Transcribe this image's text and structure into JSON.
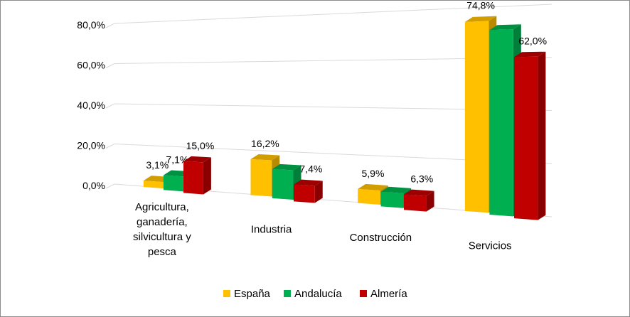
{
  "chart_data": {
    "type": "bar",
    "title": "",
    "xlabel": "",
    "ylabel": "",
    "ylim": [
      0,
      80
    ],
    "yticks": [
      "0,0%",
      "20,0%",
      "40,0%",
      "60,0%",
      "80,0%"
    ],
    "categories": [
      [
        "Agricultura,",
        "ganadería,",
        "silvicultura y",
        "pesca"
      ],
      [
        "Industria"
      ],
      [
        "Construcción"
      ],
      [
        "Servicios"
      ]
    ],
    "series": [
      {
        "name": "España",
        "color": "#ffc000",
        "values": [
          3.1,
          16.2,
          5.9,
          74.8
        ],
        "labels": [
          "3,1%",
          "16,2%",
          "5,9%",
          "74,8%"
        ]
      },
      {
        "name": "Andalucía",
        "color": "#00b050",
        "values": [
          7.1,
          13.0,
          6.1,
          72.0
        ],
        "labels": [
          "7,1%",
          "",
          "",
          ""
        ]
      },
      {
        "name": "Almería",
        "color": "#c00000",
        "values": [
          15.0,
          7.4,
          6.3,
          62.0
        ],
        "labels": [
          "15,0%",
          "7,4%",
          "6,3%",
          "62,0%"
        ]
      }
    ],
    "legend": {
      "position": "bottom",
      "items": [
        "España",
        "Andalucía",
        "Almería"
      ]
    },
    "grid": true
  }
}
